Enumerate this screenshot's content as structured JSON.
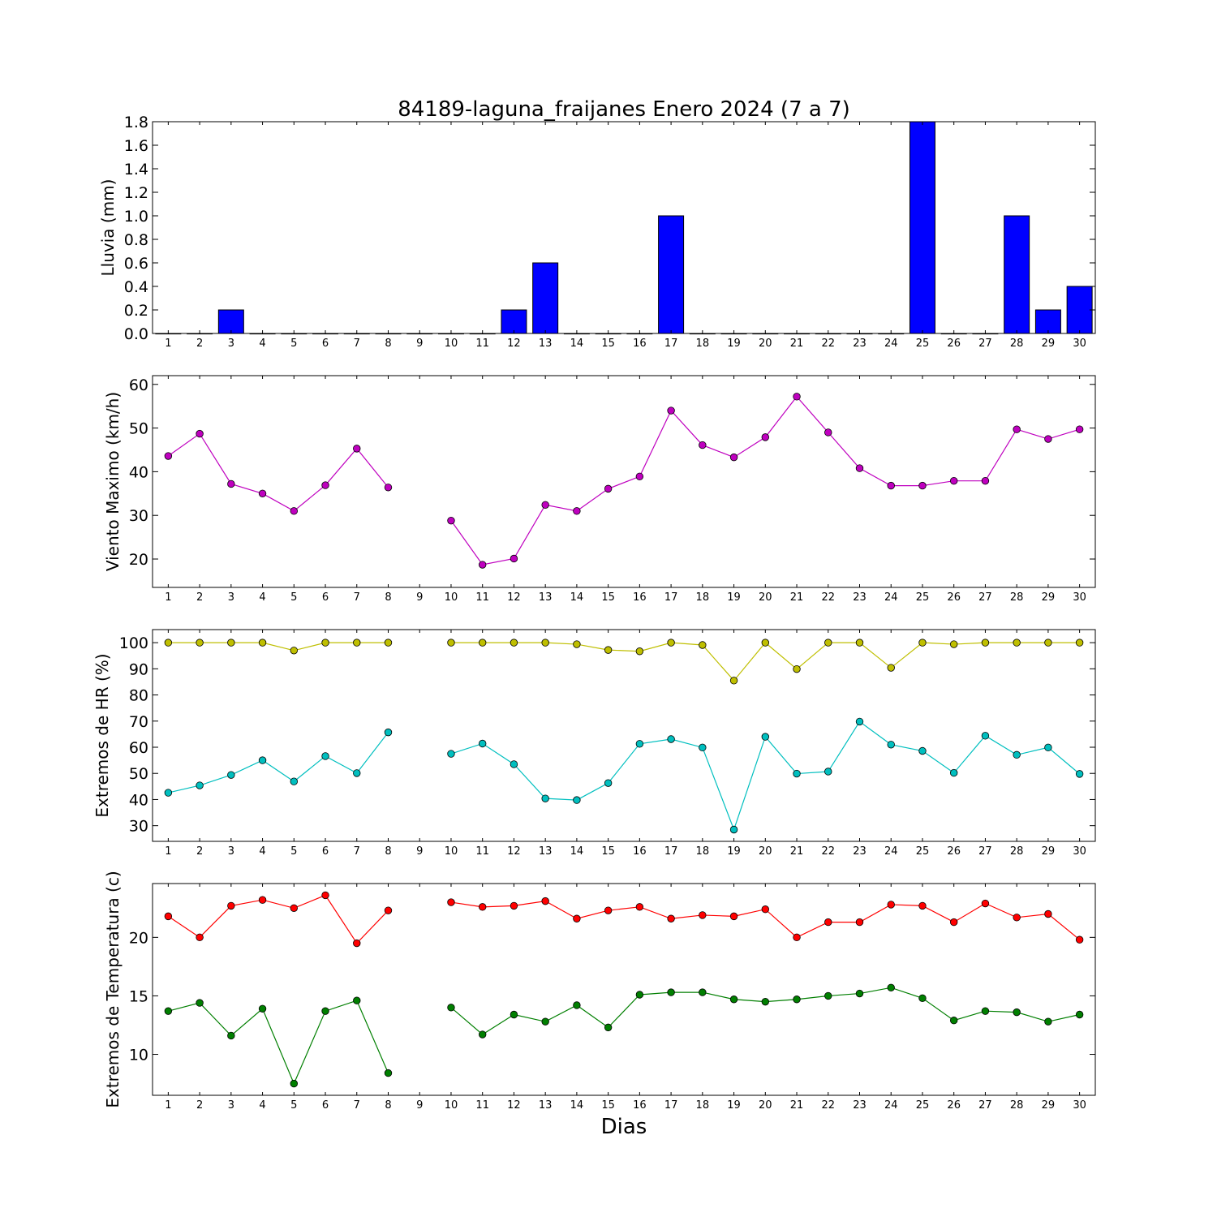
{
  "title": "84189-laguna_fraijanes Enero 2024  (7 a 7)",
  "xlabel": "Dias",
  "chart_data": [
    {
      "type": "bar",
      "ylabel": "Lluvia (mm)",
      "ylim": [
        0,
        1.8
      ],
      "yticks": [
        "0.0",
        "0.2",
        "0.4",
        "0.6",
        "0.8",
        "1.0",
        "1.2",
        "1.4",
        "1.6",
        "1.8"
      ],
      "categories": [
        "1",
        "2",
        "3",
        "4",
        "5",
        "6",
        "7",
        "8",
        "9",
        "10",
        "11",
        "12",
        "13",
        "14",
        "15",
        "16",
        "17",
        "18",
        "19",
        "20",
        "21",
        "22",
        "23",
        "24",
        "25",
        "26",
        "27",
        "28",
        "29",
        "30"
      ],
      "values": [
        0,
        0,
        0.2,
        0,
        0,
        0,
        0,
        0,
        0,
        0,
        0,
        0.2,
        0.6,
        0,
        0,
        0,
        1.0,
        0,
        0,
        0,
        0,
        0,
        0,
        0,
        1.8,
        0,
        0,
        1.0,
        0.2,
        0.4
      ],
      "color": "#0000ff"
    },
    {
      "type": "line",
      "ylabel": "Viento Maximo (km/h)",
      "ylim": [
        13.5,
        62
      ],
      "yticks": [
        "20",
        "30",
        "40",
        "50",
        "60"
      ],
      "categories": [
        "1",
        "2",
        "3",
        "4",
        "5",
        "6",
        "7",
        "8",
        "9",
        "10",
        "11",
        "12",
        "13",
        "14",
        "15",
        "16",
        "17",
        "18",
        "19",
        "20",
        "21",
        "22",
        "23",
        "24",
        "25",
        "26",
        "27",
        "28",
        "29",
        "30"
      ],
      "series": [
        {
          "color": "#bf00bf",
          "values": [
            43.6,
            48.7,
            37.2,
            35.0,
            31.0,
            36.9,
            45.3,
            36.4,
            null,
            28.8,
            18.7,
            20.1,
            32.4,
            31.0,
            36.1,
            38.9,
            54.0,
            46.1,
            43.3,
            47.9,
            57.2,
            49.0,
            40.8,
            36.8,
            36.8,
            37.9,
            37.9,
            49.7,
            47.5,
            49.7
          ]
        }
      ]
    },
    {
      "type": "line",
      "ylabel": "Extremos de HR (%)",
      "ylim": [
        24,
        105
      ],
      "yticks": [
        "30",
        "40",
        "50",
        "60",
        "70",
        "80",
        "90",
        "100"
      ],
      "categories": [
        "1",
        "2",
        "3",
        "4",
        "5",
        "6",
        "7",
        "8",
        "9",
        "10",
        "11",
        "12",
        "13",
        "14",
        "15",
        "16",
        "17",
        "18",
        "19",
        "20",
        "21",
        "22",
        "23",
        "24",
        "25",
        "26",
        "27",
        "28",
        "29",
        "30"
      ],
      "series": [
        {
          "color": "#bfbf00",
          "values": [
            100,
            100,
            100,
            100,
            97,
            100,
            100,
            100,
            null,
            100,
            100,
            100,
            100,
            99.4,
            97.2,
            96.7,
            100,
            99.1,
            85.5,
            100,
            89.9,
            100,
            100,
            90.4,
            100,
            99.4,
            100,
            100,
            100,
            100
          ]
        },
        {
          "color": "#00bfbf",
          "values": [
            42.6,
            45.4,
            49.4,
            55.0,
            46.9,
            56.6,
            50.1,
            65.7,
            null,
            57.5,
            61.4,
            53.5,
            40.4,
            39.8,
            46.3,
            61.3,
            63.1,
            59.9,
            28.5,
            64.0,
            49.9,
            50.7,
            69.8,
            61.0,
            58.6,
            50.2,
            64.4,
            57.1,
            59.9,
            49.8
          ]
        }
      ]
    },
    {
      "type": "line",
      "ylabel": "Extremos de Temperatura (c)",
      "ylim": [
        6.5,
        24.6
      ],
      "yticks": [
        "10",
        "15",
        "20"
      ],
      "categories": [
        "1",
        "2",
        "3",
        "4",
        "5",
        "6",
        "7",
        "8",
        "9",
        "10",
        "11",
        "12",
        "13",
        "14",
        "15",
        "16",
        "17",
        "18",
        "19",
        "20",
        "21",
        "22",
        "23",
        "24",
        "25",
        "26",
        "27",
        "28",
        "29",
        "30"
      ],
      "series": [
        {
          "color": "#ff0000",
          "values": [
            21.8,
            20.0,
            22.7,
            23.2,
            22.5,
            23.6,
            19.5,
            22.3,
            null,
            23.0,
            22.6,
            22.7,
            23.1,
            21.6,
            22.3,
            22.6,
            21.6,
            21.9,
            21.8,
            22.4,
            20.0,
            21.3,
            21.3,
            22.8,
            22.7,
            21.3,
            22.9,
            21.7,
            22.0,
            19.8
          ]
        },
        {
          "color": "#007f00",
          "values": [
            13.7,
            14.4,
            11.6,
            13.9,
            7.5,
            13.7,
            14.6,
            8.4,
            null,
            14.0,
            11.7,
            13.4,
            12.8,
            14.2,
            12.3,
            15.1,
            15.3,
            15.3,
            14.7,
            14.5,
            14.7,
            15.0,
            15.2,
            15.7,
            14.8,
            12.9,
            13.7,
            13.6,
            12.8,
            13.4
          ]
        }
      ]
    }
  ]
}
